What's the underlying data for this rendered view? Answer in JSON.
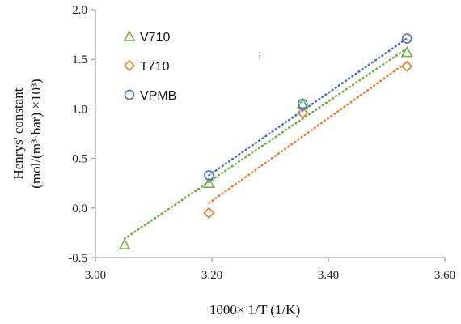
{
  "chart_data": {
    "type": "scatter",
    "xlabel": "1000× 1/T (1/K)",
    "ylabel_line1": "Henrys' constant",
    "ylabel_line2": "(mol/(m³·bar) ×10³)",
    "xlim": [
      3.0,
      3.6
    ],
    "ylim": [
      -0.5,
      2.0
    ],
    "x_ticks": [
      "3.00",
      "3.20",
      "3.40",
      "3.60"
    ],
    "y_ticks": [
      "-0.5",
      "0.0",
      "0.5",
      "1.0",
      "1.5",
      "2.0"
    ],
    "legend_position": "top-left",
    "grid": false,
    "series": [
      {
        "name": "V710",
        "marker": "triangle",
        "color": "#70AD47",
        "points": [
          [
            3.05,
            -0.37
          ],
          [
            3.195,
            0.25
          ],
          [
            3.356,
            1.05
          ],
          [
            3.535,
            1.57
          ]
        ],
        "trendline": [
          [
            3.05,
            -0.31
          ],
          [
            3.535,
            1.61
          ]
        ]
      },
      {
        "name": "T710",
        "marker": "diamond",
        "color": "#ED7D31",
        "points": [
          [
            3.195,
            -0.05
          ],
          [
            3.356,
            0.96
          ],
          [
            3.535,
            1.43
          ]
        ],
        "trendline": [
          [
            3.195,
            0.05
          ],
          [
            3.535,
            1.47
          ]
        ]
      },
      {
        "name": "VPMB",
        "marker": "circle",
        "color": "#4472C4",
        "points": [
          [
            3.195,
            0.33
          ],
          [
            3.356,
            1.05
          ],
          [
            3.535,
            1.71
          ]
        ],
        "trendline": [
          [
            3.195,
            0.33
          ],
          [
            3.535,
            1.71
          ]
        ]
      }
    ]
  }
}
